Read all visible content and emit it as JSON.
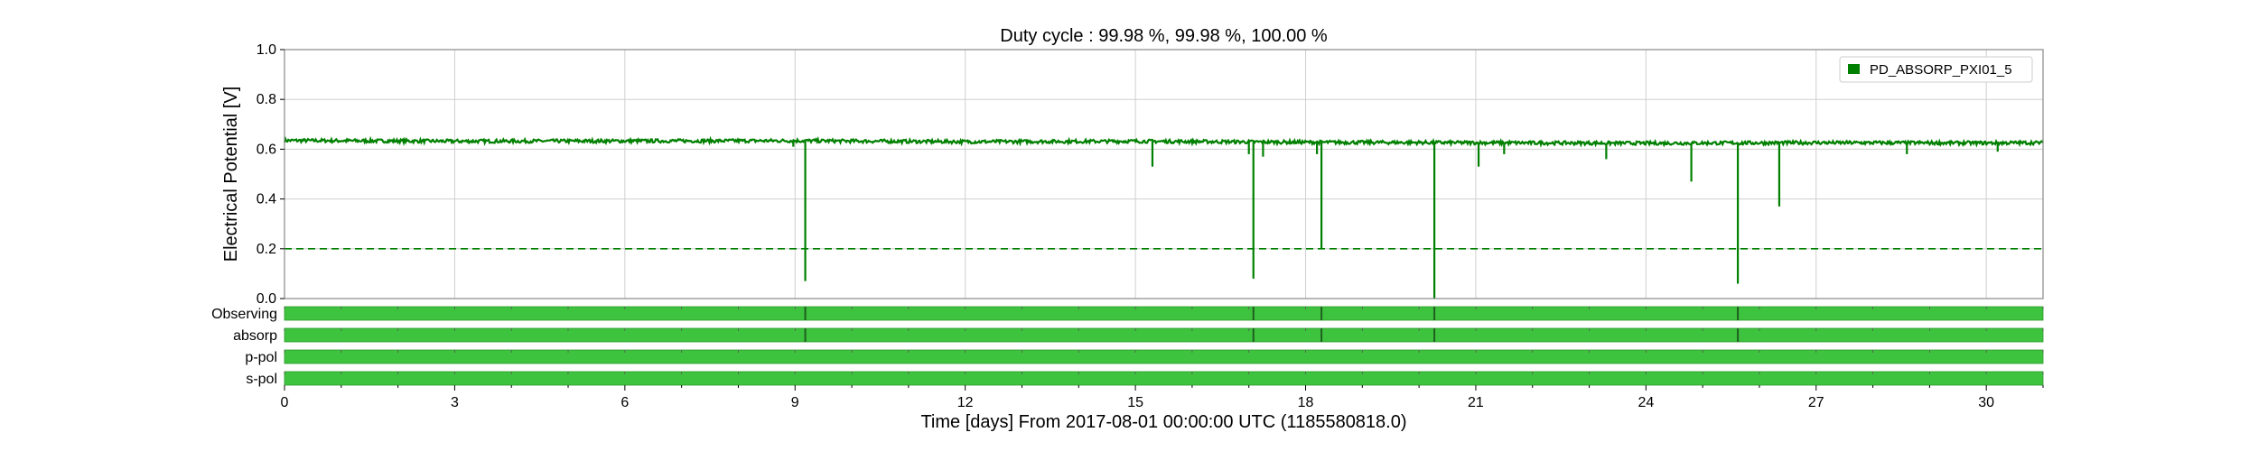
{
  "chart_data": {
    "type": "line",
    "title": "Duty cycle : 99.98 %, 99.98 %, 100.00 %",
    "xlabel": "Time [days] From 2017-08-01 00:00:00 UTC (1185580818.0)",
    "ylabel": "Electrical Potential [V]",
    "xlim": [
      0,
      31
    ],
    "ylim": [
      0,
      1.0
    ],
    "x_ticks": [
      0,
      3,
      6,
      9,
      12,
      15,
      18,
      21,
      24,
      27,
      30
    ],
    "x_tick_labels": [
      "0",
      "3",
      "6",
      "9",
      "12",
      "15",
      "18",
      "21",
      "24",
      "27",
      "30"
    ],
    "y_ticks": [
      0,
      0.2,
      0.4,
      0.6,
      0.8,
      1.0
    ],
    "y_tick_labels": [
      "0.0",
      "0.2",
      "0.4",
      "0.6",
      "0.8",
      "1.0"
    ],
    "grid": true,
    "legend_position": "top-right",
    "series": [
      {
        "name": "PD_ABSORP_PXI01_5",
        "color": "#008000",
        "baseline": 0.63,
        "points": [
          [
            0,
            0.635
          ],
          [
            3,
            0.632
          ],
          [
            6,
            0.633
          ],
          [
            9,
            0.634
          ],
          [
            12,
            0.63
          ],
          [
            15,
            0.632
          ],
          [
            18,
            0.628
          ],
          [
            21,
            0.626
          ],
          [
            24,
            0.624
          ],
          [
            27,
            0.626
          ],
          [
            30,
            0.625
          ],
          [
            31,
            0.626
          ]
        ],
        "dips": [
          {
            "x": 8.97,
            "y": 0.61
          },
          {
            "x": 9.18,
            "y": 0.07
          },
          {
            "x": 15.3,
            "y": 0.53
          },
          {
            "x": 17.0,
            "y": 0.58
          },
          {
            "x": 17.08,
            "y": 0.08
          },
          {
            "x": 17.25,
            "y": 0.57
          },
          {
            "x": 18.2,
            "y": 0.58
          },
          {
            "x": 18.28,
            "y": 0.2
          },
          {
            "x": 20.27,
            "y": 0.0
          },
          {
            "x": 21.05,
            "y": 0.53
          },
          {
            "x": 21.5,
            "y": 0.58
          },
          {
            "x": 23.3,
            "y": 0.56
          },
          {
            "x": 24.8,
            "y": 0.47
          },
          {
            "x": 25.62,
            "y": 0.06
          },
          {
            "x": 26.35,
            "y": 0.37
          },
          {
            "x": 28.6,
            "y": 0.58
          },
          {
            "x": 30.2,
            "y": 0.59
          }
        ]
      }
    ],
    "threshold": {
      "y": 0.2,
      "color": "#008000",
      "style": "dashed"
    },
    "segments": [
      {
        "label": "Observing",
        "color": "#3ec33e",
        "gaps": [
          9.18,
          17.08,
          18.28,
          20.27,
          25.62
        ]
      },
      {
        "label": "absorp",
        "color": "#3ec33e",
        "gaps": [
          9.18,
          17.08,
          18.28,
          20.27,
          25.62
        ]
      },
      {
        "label": "p-pol",
        "color": "#3ec33e",
        "gaps": []
      },
      {
        "label": "s-pol",
        "color": "#3ec33e",
        "gaps": []
      }
    ]
  }
}
